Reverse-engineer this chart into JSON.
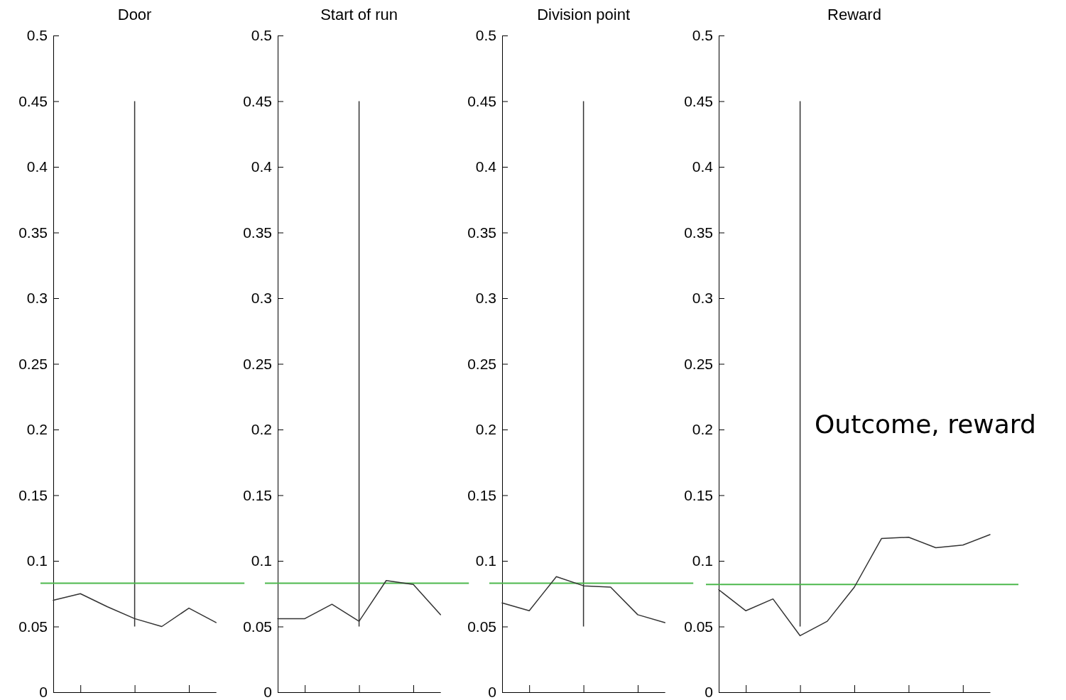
{
  "chart_data": [
    {
      "type": "line",
      "title": "Door",
      "categories": [
        null,
        null,
        null,
        null,
        null,
        null,
        null
      ],
      "ylim": [
        0,
        0.5
      ],
      "yticks": [
        0,
        0.05,
        0.1,
        0.15,
        0.2,
        0.25,
        0.3,
        0.35,
        0.4,
        0.45,
        0.5
      ],
      "series": [
        {
          "color": "#333333",
          "values": [
            0.07,
            0.075,
            0.065,
            0.056,
            0.05,
            0.064,
            0.053
          ]
        }
      ],
      "ref_lines": [
        {
          "axis": "y",
          "value": 0.083,
          "color": "#4cb84c"
        }
      ]
    },
    {
      "type": "line",
      "title": "Start of run",
      "categories": [
        null,
        null,
        null,
        null,
        null,
        null,
        null
      ],
      "ylim": [
        0,
        0.5
      ],
      "yticks": [
        0,
        0.05,
        0.1,
        0.15,
        0.2,
        0.25,
        0.3,
        0.35,
        0.4,
        0.45,
        0.5
      ],
      "series": [
        {
          "color": "#333333",
          "values": [
            0.056,
            0.056,
            0.067,
            0.054,
            0.085,
            0.082,
            0.059
          ]
        }
      ],
      "ref_lines": [
        {
          "axis": "y",
          "value": 0.083,
          "color": "#4cb84c"
        }
      ]
    },
    {
      "type": "line",
      "title": "Division point",
      "categories": [
        null,
        null,
        null,
        null,
        null,
        null,
        null
      ],
      "ylim": [
        0,
        0.5
      ],
      "yticks": [
        0,
        0.05,
        0.1,
        0.15,
        0.2,
        0.25,
        0.3,
        0.35,
        0.4,
        0.45,
        0.5
      ],
      "series": [
        {
          "color": "#333333",
          "values": [
            0.068,
            0.062,
            0.088,
            0.081,
            0.08,
            0.059,
            0.053
          ]
        }
      ],
      "ref_lines": [
        {
          "axis": "y",
          "value": 0.083,
          "color": "#4cb84c"
        }
      ]
    },
    {
      "type": "line",
      "title": "Reward",
      "categories": [
        null,
        null,
        null,
        null,
        null,
        null,
        null,
        null,
        null,
        null,
        null
      ],
      "ylim": [
        0,
        0.5
      ],
      "yticks": [
        0,
        0.05,
        0.1,
        0.15,
        0.2,
        0.25,
        0.3,
        0.35,
        0.4,
        0.45,
        0.5
      ],
      "series": [
        {
          "color": "#333333",
          "values": [
            0.078,
            0.062,
            0.071,
            0.043,
            0.054,
            0.08,
            0.117,
            0.118,
            0.11,
            0.112,
            0.12
          ]
        }
      ],
      "ref_lines": [
        {
          "axis": "y",
          "value": 0.082,
          "color": "#4cb84c"
        }
      ],
      "annotations": [
        "Outcome, reward"
      ]
    }
  ]
}
